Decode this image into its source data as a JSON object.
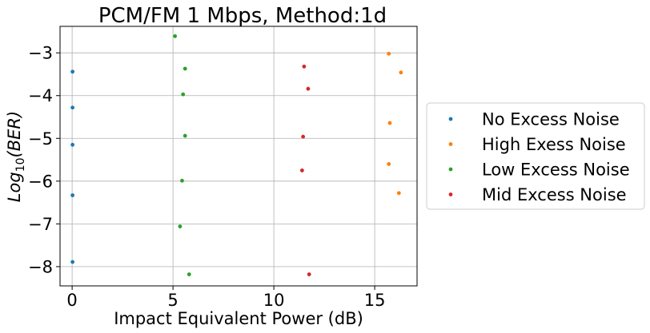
{
  "chart_data": {
    "type": "scatter",
    "title": "PCM/FM 1 Mbps, Method:1d",
    "xlabel": "Impact Equivalent Power (dB)",
    "ylabel_main": "Log",
    "ylabel_sub": "10",
    "ylabel_arg": "(BER)",
    "xlim": [
      -0.6,
      17.1
    ],
    "ylim": [
      -8.45,
      -2.38
    ],
    "xticks": [
      0,
      5,
      10,
      15
    ],
    "xtick_labels": [
      "0",
      "5",
      "10",
      "15"
    ],
    "yticks": [
      -3,
      -4,
      -5,
      -6,
      -7,
      -8
    ],
    "ytick_labels": [
      "−3",
      "−4",
      "−5",
      "−6",
      "−7",
      "−8"
    ],
    "grid": true,
    "legend_placement": "outside-right",
    "series": [
      {
        "name": "No Excess Noise",
        "color": "#1f77b4",
        "points": [
          [
            0.02,
            -3.44
          ],
          [
            0.02,
            -4.28
          ],
          [
            0.02,
            -5.15
          ],
          [
            0.02,
            -6.33
          ],
          [
            0.02,
            -7.89
          ]
        ]
      },
      {
        "name": "High Exess Noise",
        "color": "#ff7f0e",
        "points": [
          [
            15.7,
            -3.02
          ],
          [
            16.3,
            -3.46
          ],
          [
            15.75,
            -4.64
          ],
          [
            15.7,
            -5.6
          ],
          [
            16.2,
            -6.28
          ]
        ]
      },
      {
        "name": "Low Excess Noise",
        "color": "#2ca02c",
        "points": [
          [
            5.1,
            -2.61
          ],
          [
            5.6,
            -3.37
          ],
          [
            5.5,
            -3.97
          ],
          [
            5.6,
            -4.94
          ],
          [
            5.45,
            -5.99
          ],
          [
            5.35,
            -7.06
          ],
          [
            5.8,
            -8.18
          ]
        ]
      },
      {
        "name": "Mid Excess Noise",
        "color": "#d62728",
        "points": [
          [
            11.5,
            -3.32
          ],
          [
            11.7,
            -3.84
          ],
          [
            11.45,
            -4.96
          ],
          [
            11.4,
            -5.75
          ],
          [
            11.75,
            -8.18
          ]
        ]
      }
    ]
  }
}
